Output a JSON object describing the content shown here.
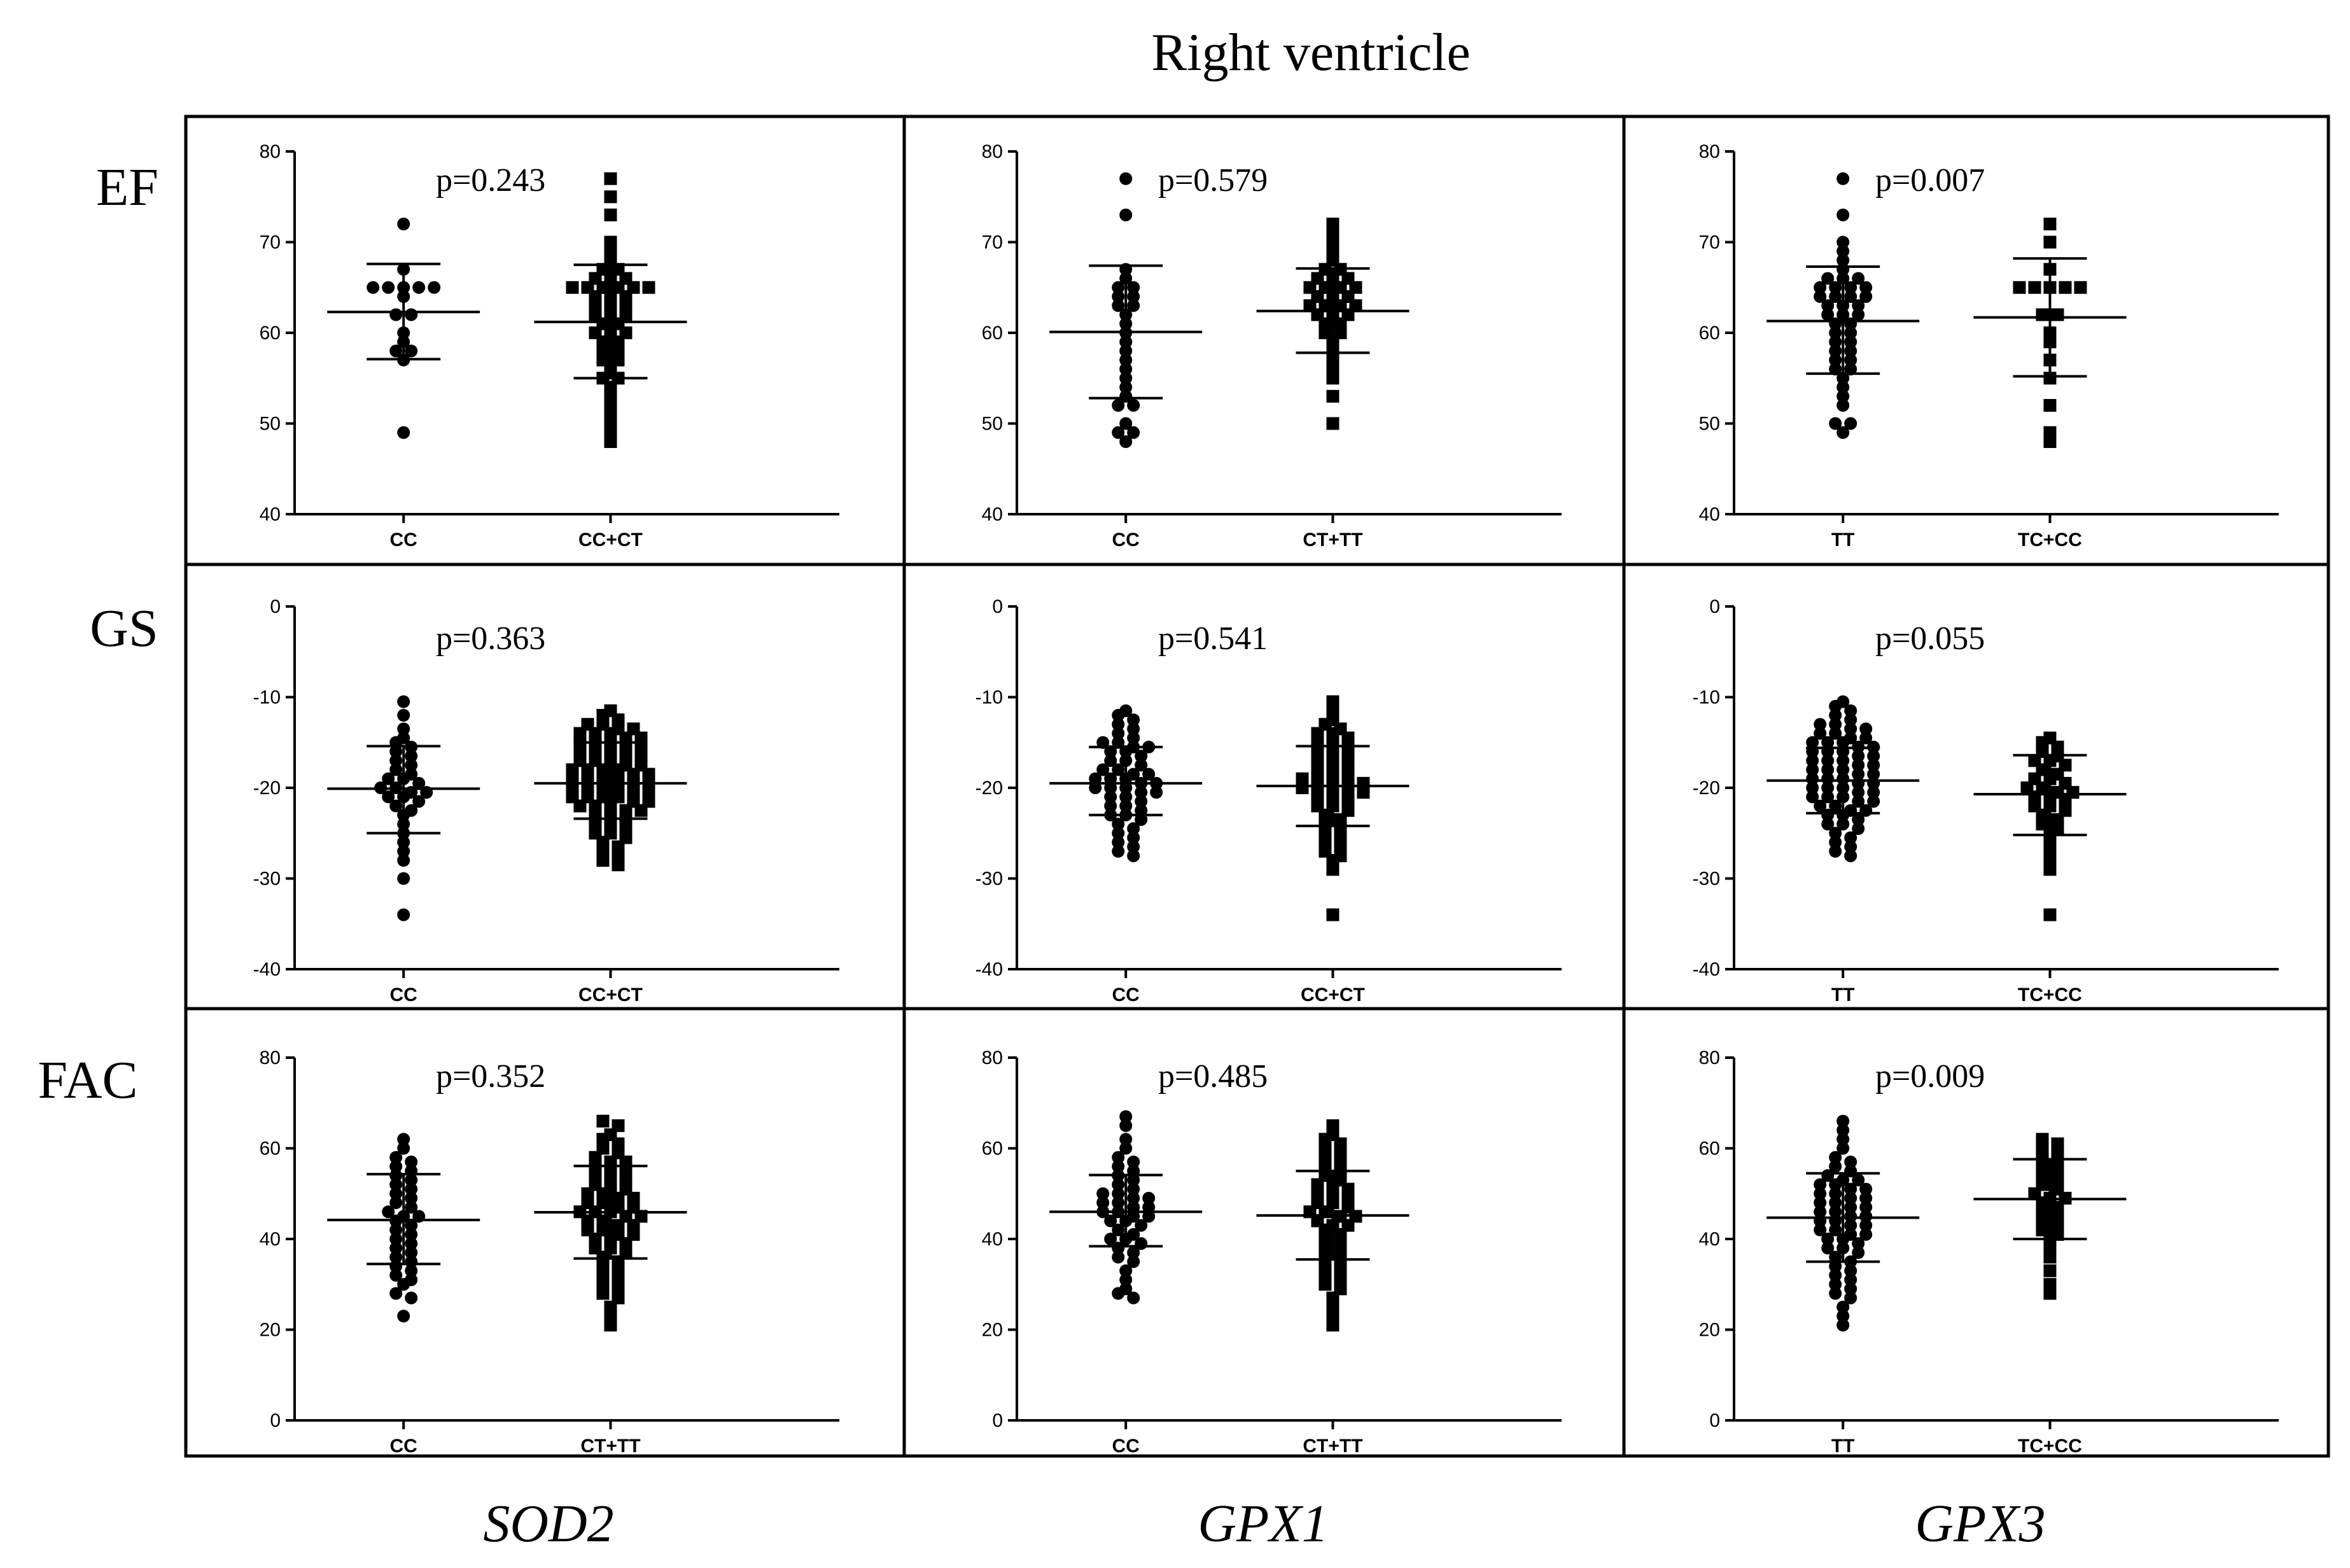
{
  "figure": {
    "title": "Right ventricle",
    "row_labels": [
      "EF",
      "GS",
      "FAC"
    ],
    "column_labels": [
      "SOD2",
      "GPX1",
      "GPX3"
    ]
  },
  "chart_data": [
    {
      "type": "scatter",
      "row": "EF",
      "gene": "SOD2",
      "p_value": "p=0.243",
      "ylim": [
        40,
        80
      ],
      "yticks": [
        40,
        50,
        60,
        70,
        80
      ],
      "groups": [
        {
          "label": "CC",
          "marker": "circle",
          "mean": 62.3,
          "sd_low": 57.1,
          "sd_high": 67.6,
          "values": [
            72,
            67,
            65,
            65,
            65,
            65,
            65,
            64,
            62,
            62,
            60,
            59,
            58,
            58,
            57,
            49
          ]
        },
        {
          "label": "CC+CT",
          "marker": "square",
          "mean": 61.2,
          "sd_low": 55.0,
          "sd_high": 67.5,
          "values": [
            77,
            75,
            73,
            70,
            69,
            68,
            67,
            67,
            66,
            66,
            66,
            65,
            65,
            65,
            65,
            65,
            65,
            64,
            64,
            64,
            63,
            63,
            63,
            62,
            62,
            62,
            61,
            61,
            60,
            60,
            60,
            59,
            59,
            58,
            58,
            57,
            57,
            56,
            55,
            55,
            54,
            53,
            52,
            51,
            50,
            49,
            48
          ]
        }
      ]
    },
    {
      "type": "scatter",
      "row": "EF",
      "gene": "GPX1",
      "p_value": "p=0.579",
      "ylim": [
        40,
        80
      ],
      "yticks": [
        40,
        50,
        60,
        70,
        80
      ],
      "groups": [
        {
          "label": "CC",
          "marker": "circle",
          "mean": 60.1,
          "sd_low": 52.8,
          "sd_high": 67.4,
          "values": [
            77,
            73,
            67,
            66,
            65,
            65,
            64,
            64,
            63,
            63,
            62,
            61,
            60,
            59,
            58,
            57,
            56,
            55,
            54,
            53,
            52,
            52,
            50,
            49,
            49,
            48
          ]
        },
        {
          "label": "CT+TT",
          "marker": "square",
          "mean": 62.4,
          "sd_low": 57.8,
          "sd_high": 67.1,
          "values": [
            72,
            71,
            70,
            69,
            68,
            67,
            67,
            66,
            66,
            66,
            65,
            65,
            65,
            65,
            64,
            64,
            64,
            63,
            63,
            63,
            63,
            62,
            62,
            62,
            61,
            61,
            60,
            60,
            59,
            58,
            57,
            56,
            55,
            53,
            50
          ]
        }
      ]
    },
    {
      "type": "scatter",
      "row": "EF",
      "gene": "GPX3",
      "p_value": "p=0.007",
      "ylim": [
        40,
        80
      ],
      "yticks": [
        40,
        50,
        60,
        70,
        80
      ],
      "groups": [
        {
          "label": "TT",
          "marker": "circle",
          "mean": 61.3,
          "sd_low": 55.5,
          "sd_high": 67.3,
          "values": [
            77,
            73,
            70,
            69,
            68,
            67,
            66,
            66,
            66,
            65,
            65,
            65,
            65,
            64,
            64,
            64,
            64,
            63,
            63,
            63,
            62,
            62,
            62,
            61,
            61,
            60,
            60,
            59,
            59,
            58,
            58,
            57,
            57,
            56,
            56,
            55,
            54,
            53,
            52,
            50,
            50,
            49
          ]
        },
        {
          "label": "TC+CC",
          "marker": "square",
          "mean": 61.7,
          "sd_low": 55.2,
          "sd_high": 68.2,
          "values": [
            72,
            70,
            67,
            65,
            65,
            65,
            65,
            65,
            62,
            62,
            60,
            59,
            57,
            55,
            52,
            49,
            48
          ]
        }
      ]
    },
    {
      "type": "scatter",
      "row": "GS",
      "gene": "SOD2",
      "p_value": "p=0.363",
      "ylim": [
        -40,
        0
      ],
      "yticks": [
        -40,
        -30,
        -20,
        -10,
        0
      ],
      "groups": [
        {
          "label": "CC",
          "marker": "circle",
          "mean": -20.1,
          "sd_low": -25.0,
          "sd_high": -15.4,
          "values": [
            -10.5,
            -12,
            -13.5,
            -14.5,
            -15,
            -15.5,
            -16,
            -16.5,
            -17,
            -17.5,
            -18,
            -18.5,
            -19,
            -19,
            -19.5,
            -20,
            -20,
            -20.5,
            -20.5,
            -21,
            -21,
            -21.5,
            -22,
            -22.5,
            -23,
            -24,
            -25,
            -26,
            -27,
            -28,
            -30,
            -34
          ]
        },
        {
          "label": "CC+CT",
          "marker": "square",
          "mean": -19.5,
          "sd_low": -23.4,
          "sd_high": -15.0,
          "values": [
            -11.5,
            -12,
            -12.5,
            -13,
            -13,
            -13.5,
            -13.5,
            -14,
            -14,
            -14,
            -14.5,
            -14.5,
            -15,
            -15,
            -15,
            -15.5,
            -15.5,
            -16,
            -16,
            -16,
            -16.5,
            -16.5,
            -17,
            -17,
            -17,
            -17.5,
            -17.5,
            -18,
            -18,
            -18,
            -18,
            -18.5,
            -18.5,
            -19,
            -19,
            -19,
            -19,
            -19.5,
            -19.5,
            -20,
            -20,
            -20,
            -20,
            -20.5,
            -20.5,
            -21,
            -21,
            -21,
            -21,
            -21.5,
            -21.5,
            -22,
            -22,
            -22,
            -22.5,
            -22.5,
            -23,
            -23,
            -23.5,
            -24,
            -24,
            -24.5,
            -25,
            -25,
            -25.5,
            -26,
            -26.5,
            -27,
            -27.5,
            -28,
            -28.5
          ]
        }
      ]
    },
    {
      "type": "scatter",
      "row": "GS",
      "gene": "GPX1",
      "p_value": "p=0.541",
      "ylim": [
        -40,
        0
      ],
      "yticks": [
        -40,
        -30,
        -20,
        -10,
        0
      ],
      "groups": [
        {
          "label": "CC",
          "marker": "circle",
          "mean": -19.5,
          "sd_low": -23.0,
          "sd_high": -15.5,
          "values": [
            -11.5,
            -12,
            -12.5,
            -13,
            -13.5,
            -14,
            -14.5,
            -15,
            -15,
            -15.5,
            -15.5,
            -16,
            -16,
            -16.5,
            -17,
            -17,
            -17.5,
            -18,
            -18,
            -18.5,
            -18.5,
            -19,
            -19,
            -19,
            -19.5,
            -19.5,
            -20,
            -20,
            -20,
            -20.5,
            -20.5,
            -21,
            -21,
            -21.5,
            -22,
            -22,
            -22.5,
            -23,
            -23,
            -23.5,
            -24,
            -24.5,
            -25,
            -25.5,
            -26,
            -26.5,
            -27,
            -27.5
          ]
        },
        {
          "label": "CC+CT",
          "marker": "square",
          "mean": -19.8,
          "sd_low": -24.2,
          "sd_high": -15.4,
          "values": [
            -10.5,
            -11.5,
            -12.5,
            -13,
            -13.5,
            -14,
            -14,
            -14.5,
            -15,
            -15,
            -15.5,
            -16,
            -16,
            -16.5,
            -17,
            -17,
            -17.5,
            -18,
            -18,
            -18.5,
            -19,
            -19,
            -19,
            -19.5,
            -19.5,
            -20,
            -20,
            -20,
            -20.5,
            -20.5,
            -21,
            -21,
            -21.5,
            -22,
            -22,
            -22.5,
            -23,
            -23.5,
            -24,
            -24.5,
            -25,
            -25.5,
            -26,
            -26.5,
            -27,
            -27.5,
            -28,
            -29,
            -34
          ]
        }
      ]
    },
    {
      "type": "scatter",
      "row": "GS",
      "gene": "GPX3",
      "p_value": "p=0.055",
      "ylim": [
        -40,
        0
      ],
      "yticks": [
        -40,
        -30,
        -20,
        -10,
        0
      ],
      "groups": [
        {
          "label": "TT",
          "marker": "circle",
          "mean": -19.2,
          "sd_low": -22.8,
          "sd_high": -15.6,
          "values": [
            -10.5,
            -11,
            -11.5,
            -12,
            -12.5,
            -13,
            -13,
            -13.5,
            -13.5,
            -14,
            -14,
            -14.5,
            -14.5,
            -15,
            -15,
            -15,
            -15.5,
            -15.5,
            -16,
            -16,
            -16,
            -16.5,
            -16.5,
            -17,
            -17,
            -17,
            -17.5,
            -17.5,
            -18,
            -18,
            -18,
            -18.5,
            -18.5,
            -19,
            -19,
            -19,
            -19.5,
            -19.5,
            -20,
            -20,
            -20,
            -20.5,
            -20.5,
            -21,
            -21,
            -21,
            -21.5,
            -21.5,
            -22,
            -22,
            -22.5,
            -22.5,
            -23,
            -23,
            -23.5,
            -24,
            -24,
            -24.5,
            -25,
            -25.5,
            -26,
            -26.5,
            -27,
            -27.5
          ]
        },
        {
          "label": "TC+CC",
          "marker": "square",
          "mean": -20.7,
          "sd_low": -25.2,
          "sd_high": -16.4,
          "values": [
            -14.5,
            -15,
            -15.5,
            -16,
            -16.5,
            -17,
            -17,
            -17.5,
            -18,
            -18.5,
            -19,
            -19,
            -19.5,
            -20,
            -20,
            -20.5,
            -20.5,
            -21,
            -21,
            -21.5,
            -22,
            -22,
            -22.5,
            -23,
            -23.5,
            -24,
            -24.5,
            -25,
            -26,
            -27,
            -28,
            -29,
            -34
          ]
        }
      ]
    },
    {
      "type": "scatter",
      "row": "FAC",
      "gene": "SOD2",
      "p_value": "p=0.352",
      "ylim": [
        0,
        80
      ],
      "yticks": [
        0,
        20,
        40,
        60,
        80
      ],
      "groups": [
        {
          "label": "CC",
          "marker": "circle",
          "mean": 44.2,
          "sd_low": 34.5,
          "sd_high": 54.3,
          "values": [
            62,
            60,
            58,
            57,
            56,
            55,
            54,
            53,
            52,
            51,
            50,
            49,
            48,
            47,
            46,
            45,
            45,
            44,
            43,
            42,
            41,
            40,
            39,
            38,
            37,
            36,
            35,
            34,
            33,
            32,
            31,
            30,
            28,
            27,
            23
          ]
        },
        {
          "label": "CT+TT",
          "marker": "square",
          "mean": 45.9,
          "sd_low": 35.7,
          "sd_high": 56.1,
          "values": [
            66,
            65,
            63,
            62,
            61,
            60,
            59,
            58,
            57,
            57,
            56,
            55,
            55,
            54,
            53,
            53,
            52,
            51,
            51,
            50,
            50,
            49,
            49,
            48,
            48,
            47,
            47,
            46,
            46,
            46,
            45,
            45,
            44,
            44,
            43,
            43,
            42,
            42,
            41,
            41,
            40,
            40,
            39,
            38,
            38,
            37,
            36,
            35,
            34,
            33,
            32,
            31,
            30,
            29,
            28,
            27,
            25,
            23,
            21
          ]
        }
      ]
    },
    {
      "type": "scatter",
      "row": "FAC",
      "gene": "GPX1",
      "p_value": "p=0.485",
      "ylim": [
        0,
        80
      ],
      "yticks": [
        0,
        20,
        40,
        60,
        80
      ],
      "groups": [
        {
          "label": "CC",
          "marker": "circle",
          "mean": 46.0,
          "sd_low": 38.4,
          "sd_high": 54.1,
          "values": [
            67,
            65,
            62,
            60,
            58,
            57,
            56,
            55,
            54,
            53,
            52,
            51,
            50,
            50,
            49,
            49,
            48,
            48,
            47,
            47,
            46,
            46,
            45,
            45,
            44,
            44,
            43,
            42,
            41,
            40,
            40,
            39,
            38,
            37,
            36,
            35,
            33,
            31,
            29,
            28,
            27
          ]
        },
        {
          "label": "CT+TT",
          "marker": "square",
          "mean": 45.2,
          "sd_low": 35.5,
          "sd_high": 55.0,
          "values": [
            65,
            63,
            62,
            61,
            60,
            59,
            58,
            57,
            56,
            55,
            54,
            53,
            52,
            52,
            51,
            50,
            50,
            49,
            48,
            48,
            47,
            46,
            46,
            45,
            45,
            44,
            43,
            43,
            42,
            41,
            40,
            39,
            38,
            37,
            36,
            35,
            34,
            33,
            32,
            31,
            30,
            29,
            27,
            25,
            23,
            21
          ]
        }
      ]
    },
    {
      "type": "scatter",
      "row": "FAC",
      "gene": "GPX3",
      "p_value": "p=0.009",
      "ylim": [
        0,
        80
      ],
      "yticks": [
        0,
        20,
        40,
        60,
        80
      ],
      "groups": [
        {
          "label": "TT",
          "marker": "circle",
          "mean": 44.7,
          "sd_low": 35.0,
          "sd_high": 54.5,
          "values": [
            66,
            64,
            62,
            60,
            58,
            57,
            56,
            55,
            54,
            53,
            53,
            52,
            52,
            51,
            51,
            50,
            50,
            49,
            49,
            48,
            48,
            47,
            47,
            46,
            46,
            45,
            45,
            44,
            44,
            43,
            43,
            42,
            42,
            41,
            41,
            40,
            40,
            39,
            38,
            38,
            37,
            36,
            35,
            34,
            33,
            32,
            31,
            30,
            29,
            28,
            27,
            25,
            23,
            21
          ]
        },
        {
          "label": "TC+CC",
          "marker": "square",
          "mean": 48.8,
          "sd_low": 40.0,
          "sd_high": 57.6,
          "values": [
            62,
            61,
            60,
            59,
            58,
            57,
            56,
            55,
            54,
            53,
            52,
            51,
            50,
            49,
            49,
            48,
            47,
            46,
            45,
            44,
            43,
            42,
            41,
            40,
            38,
            36,
            33,
            30,
            28
          ]
        }
      ]
    }
  ]
}
